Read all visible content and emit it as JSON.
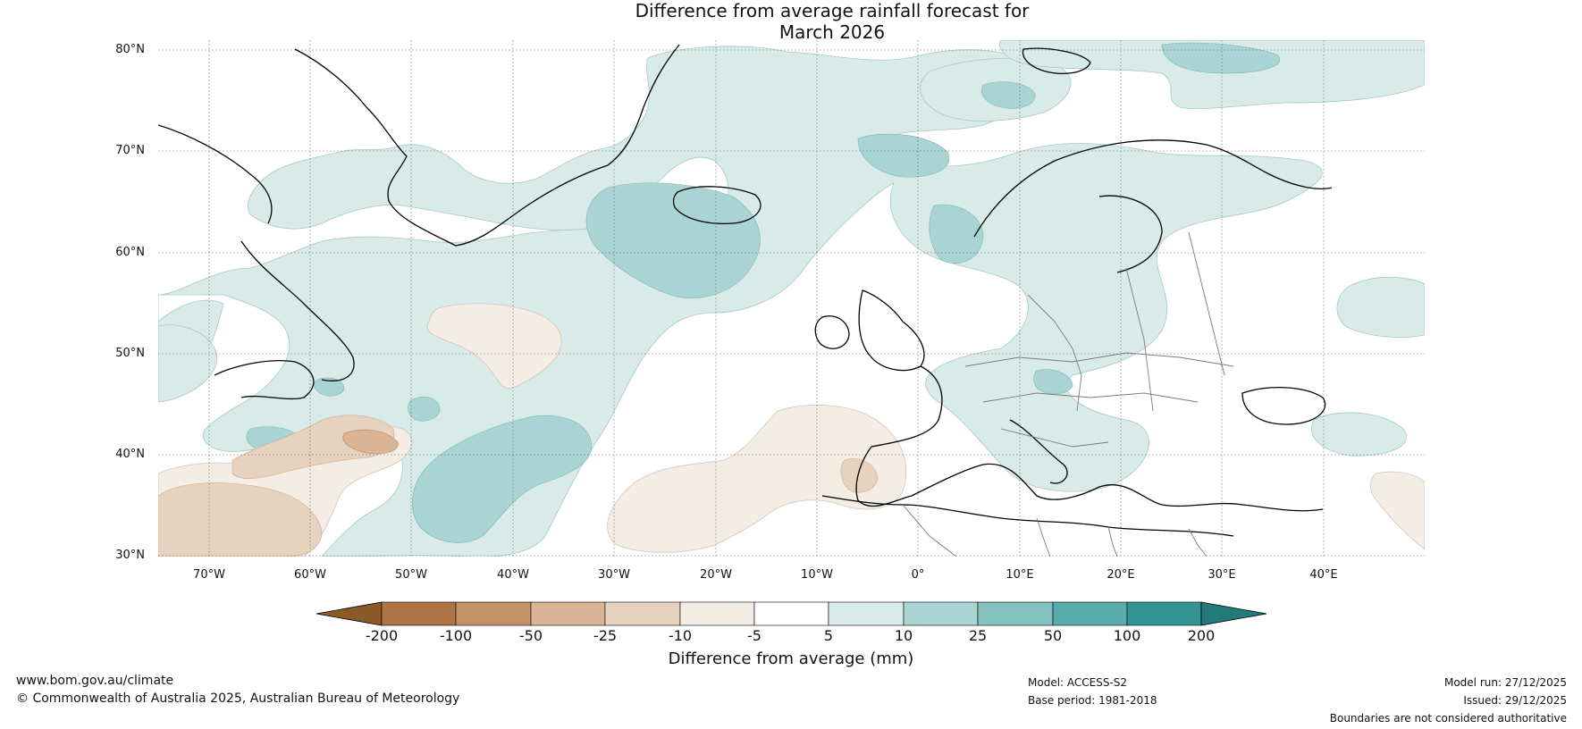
{
  "title": {
    "line1": "Difference from average rainfall forecast for",
    "line2": "March 2026"
  },
  "map": {
    "lat_labels": [
      "80°N",
      "70°N",
      "60°N",
      "50°N",
      "40°N",
      "30°N"
    ],
    "lon_labels": [
      "70°W",
      "60°W",
      "50°W",
      "40°W",
      "30°W",
      "20°W",
      "10°W",
      "0°",
      "10°E",
      "20°E",
      "30°E",
      "40°E"
    ],
    "extent": {
      "lon": [
        -75,
        50
      ],
      "lat": [
        30,
        81
      ]
    }
  },
  "colorbar": {
    "title": "Difference from average (mm)",
    "tick_labels": [
      "-200",
      "-100",
      "-50",
      "-25",
      "-10",
      "-5",
      "5",
      "10",
      "25",
      "50",
      "100",
      "200"
    ],
    "colors": [
      "#8a5a29",
      "#ae7444",
      "#c59267",
      "#d9b594",
      "#e7d2c0",
      "#f3ede6",
      "#ffffff",
      "#d8ebe9",
      "#a9d4d3",
      "#83c2c0",
      "#5aabab",
      "#339494",
      "#237a7a"
    ]
  },
  "footer": {
    "website": "www.bom.gov.au/climate",
    "copyright": "© Commonwealth of Australia 2025, Australian Bureau of Meteorology",
    "model": "Model: ACCESS-S2",
    "base_period": "Base period: 1981-2018",
    "model_run": "Model run: 27/12/2025",
    "issued": "Issued: 29/12/2025",
    "disclaimer": "Boundaries are not considered authoritative"
  }
}
